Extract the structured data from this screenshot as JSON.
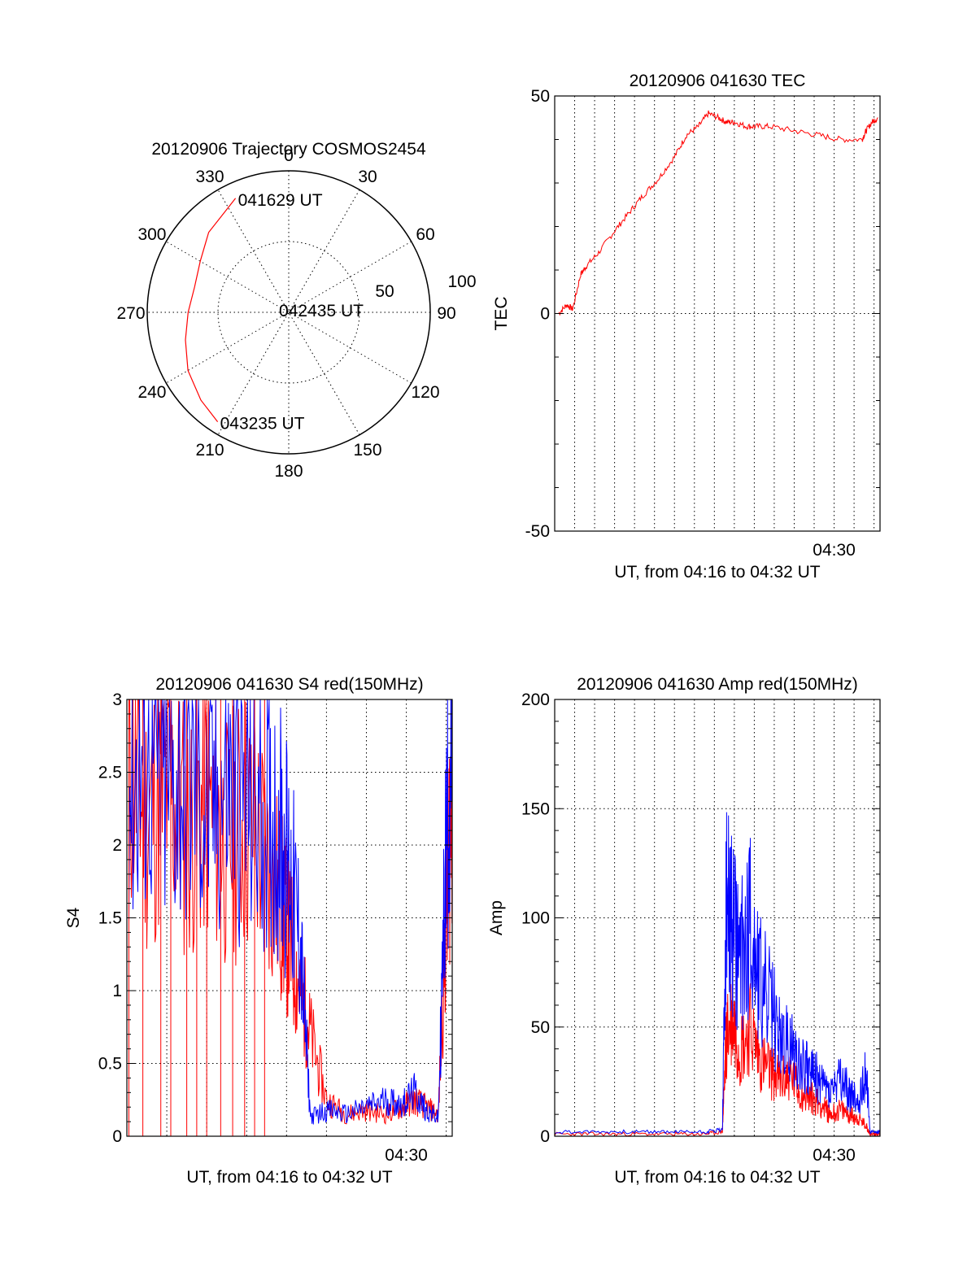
{
  "chart_data": [
    {
      "type": "polar",
      "title": "20120906 Trajectory COSMOS2454",
      "angle_labels": [
        "0",
        "30",
        "60",
        "90",
        "120",
        "150",
        "180",
        "210",
        "240",
        "270",
        "300",
        "330"
      ],
      "radius_labels": [
        "50",
        "100"
      ],
      "trajectory_color": "#ff0000",
      "trajectory": [
        {
          "az": 335,
          "el": 10
        },
        {
          "az": 315,
          "el": 18
        },
        {
          "az": 300,
          "el": 25
        },
        {
          "az": 285,
          "el": 28
        },
        {
          "az": 270,
          "el": 26
        },
        {
          "az": 255,
          "el": 22
        },
        {
          "az": 240,
          "el": 16
        },
        {
          "az": 225,
          "el": 11
        },
        {
          "az": 213,
          "el": 7
        }
      ],
      "annotations": [
        {
          "text": "041629 UT",
          "az": 335,
          "el": 10
        },
        {
          "text": "042435 UT",
          "az": 285,
          "el": 82
        },
        {
          "text": "043235 UT",
          "az": 213,
          "el": 7
        }
      ]
    },
    {
      "type": "line",
      "title": "20120906 041630 TEC",
      "ylabel": "TEC",
      "xlabel": "UT, from 04:16 to 04:32 UT",
      "xlim": [
        0,
        16.3
      ],
      "ylim": [
        -50,
        50
      ],
      "yticks": [
        "-50",
        "0",
        "50"
      ],
      "xticks": [
        {
          "label": "04:30",
          "x": 14
        }
      ],
      "grid_x_step_min": 1,
      "series": [
        {
          "color": "#ff0000",
          "x": [
            0.2,
            0.6,
            0.9,
            1.3,
            1.6,
            2.2,
            3.0,
            3.7,
            4.4,
            5.2,
            6.0,
            6.6,
            7.2,
            7.7,
            8.2,
            8.6,
            9.0,
            9.6,
            10.1,
            10.8,
            12.0,
            13.2,
            14.3,
            15.4,
            15.6,
            15.9,
            16.2
          ],
          "y": [
            0,
            2,
            1,
            9,
            11,
            14,
            19,
            23,
            27,
            31,
            36,
            41,
            43,
            46,
            45,
            44,
            44,
            43,
            43,
            43,
            42,
            41,
            40,
            40,
            42,
            44,
            45
          ]
        }
      ]
    },
    {
      "type": "line",
      "title": "20120906 041630 S4 red(150MHz)",
      "ylabel": "S4",
      "xlabel": "UT, from 04:16 to 04:32 UT",
      "xlim": [
        0,
        16.3
      ],
      "ylim": [
        0,
        3
      ],
      "yticks": [
        "0",
        "0.5",
        "1",
        "1.5",
        "2",
        "2.5",
        "3"
      ],
      "xticks": [
        {
          "label": "04:30",
          "x": 14
        }
      ],
      "grid_x_step_min": 2,
      "series": [
        {
          "color": "#ff0000",
          "x": [
            0.1,
            1.0,
            2.0,
            3.0,
            4.0,
            5.0,
            6.0,
            7.0,
            7.7,
            8.2,
            8.7,
            9.2,
            10.0,
            11.0,
            12.0,
            13.0,
            13.8,
            14.4,
            15.0,
            15.6,
            16.0,
            16.3
          ],
          "y": [
            2.6,
            2.2,
            2.4,
            2.1,
            2.3,
            2.0,
            2.2,
            1.9,
            1.6,
            1.3,
            1.0,
            0.7,
            0.25,
            0.15,
            0.18,
            0.15,
            0.2,
            0.25,
            0.2,
            0.15,
            1.5,
            2.5
          ]
        },
        {
          "color": "#0000ff",
          "x": [
            0.1,
            1.0,
            2.0,
            3.0,
            4.0,
            5.0,
            6.0,
            7.0,
            7.7,
            8.2,
            8.7,
            9.2,
            10.0,
            11.0,
            12.0,
            13.0,
            13.8,
            14.4,
            15.0,
            15.6,
            16.0,
            16.3
          ],
          "y": [
            2.4,
            2.6,
            2.3,
            2.5,
            2.2,
            2.4,
            2.3,
            2.2,
            2.1,
            1.8,
            1.3,
            0.13,
            0.18,
            0.15,
            0.2,
            0.25,
            0.22,
            0.3,
            0.18,
            0.12,
            2.0,
            2.8
          ]
        }
      ],
      "red_spikes_x": [
        0.1,
        0.8,
        1.7,
        2.2,
        3.0,
        3.5,
        4.0,
        4.7,
        5.3,
        5.9,
        6.4,
        6.9
      ]
    },
    {
      "type": "line",
      "title": "20120906 041630 Amp red(150MHz)",
      "ylabel": "Amp",
      "xlabel": "UT, from 04:16 to 04:32 UT",
      "xlim": [
        0,
        16.3
      ],
      "ylim": [
        0,
        200
      ],
      "yticks": [
        "0",
        "50",
        "100",
        "150",
        "200"
      ],
      "xticks": [
        {
          "label": "04:30",
          "x": 14
        }
      ],
      "grid_x_step_min": 1,
      "series": [
        {
          "color": "#ff0000",
          "x": [
            0,
            2,
            4,
            6,
            7.5,
            8.4,
            8.6,
            8.9,
            9.3,
            9.8,
            10.3,
            10.8,
            11.3,
            11.8,
            12.3,
            12.8,
            13.3,
            13.8,
            14.3,
            14.8,
            15.2,
            15.6,
            15.8,
            16.3
          ],
          "y": [
            1,
            1,
            1,
            1,
            1,
            2,
            45,
            55,
            40,
            50,
            35,
            30,
            25,
            28,
            20,
            18,
            15,
            10,
            12,
            10,
            8,
            5,
            1,
            1
          ]
        },
        {
          "color": "#0000ff",
          "x": [
            0,
            2,
            4,
            6,
            7.5,
            8.4,
            8.6,
            8.9,
            9.3,
            9.8,
            10.3,
            10.8,
            11.3,
            11.8,
            12.3,
            12.8,
            13.3,
            13.8,
            14.3,
            14.8,
            15.2,
            15.6,
            15.8,
            16.3
          ],
          "y": [
            2,
            2,
            2,
            2,
            2,
            3,
            105,
            95,
            80,
            100,
            70,
            60,
            45,
            40,
            35,
            30,
            25,
            20,
            25,
            20,
            15,
            30,
            2,
            2
          ]
        }
      ]
    }
  ]
}
